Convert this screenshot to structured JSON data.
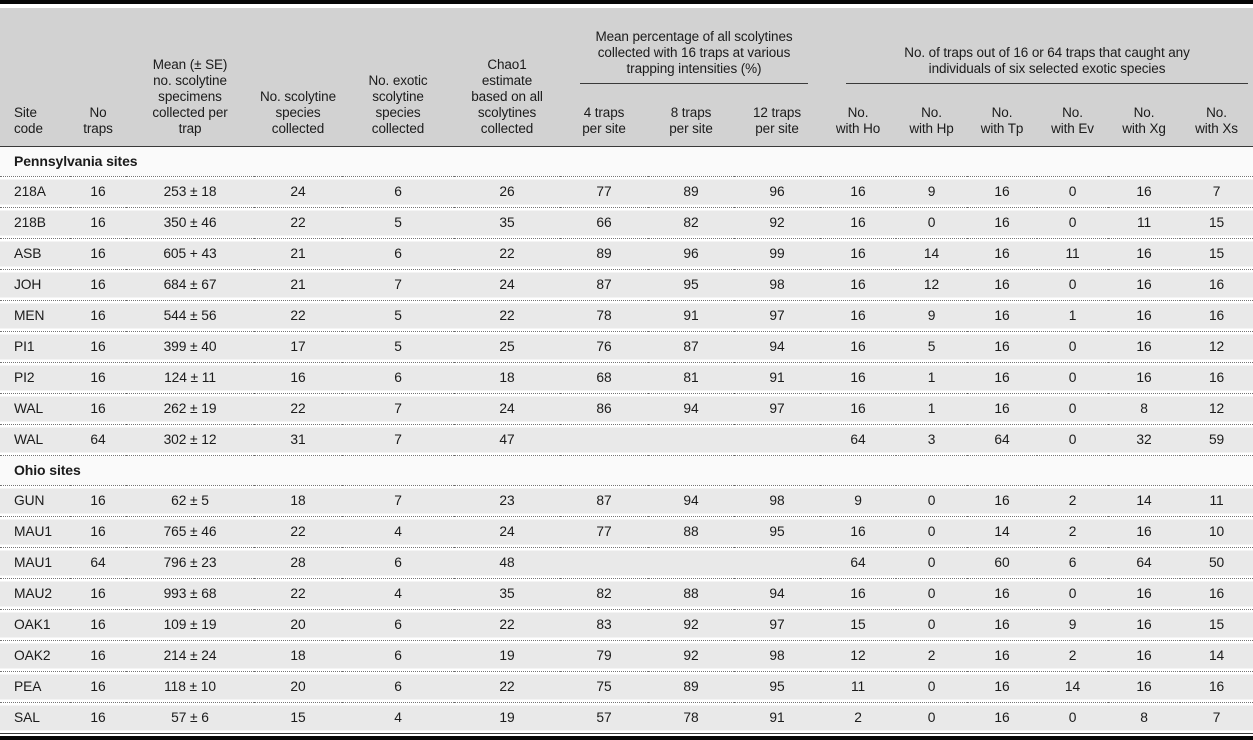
{
  "colors": {
    "header_bg": "#d2d2d2",
    "row_bg": "#e9e9e9",
    "section_bg": "#fafafa",
    "rule": "#3a3a3a",
    "frame": "#050505"
  },
  "table": {
    "columns": [
      {
        "id": "site",
        "label": "Site\ncode"
      },
      {
        "id": "traps",
        "label": "No\ntraps"
      },
      {
        "id": "mean",
        "label": "Mean (± SE)\nno. scolytine\nspecimens\ncollected per\ntrap"
      },
      {
        "id": "species",
        "label": "No. scolytine\nspecies\ncollected"
      },
      {
        "id": "exotic",
        "label": "No. exotic\nscolytine\nspecies\ncollected"
      },
      {
        "id": "chao1",
        "label": "Chao1\nestimate\nbased on all\nscolytines\ncollected"
      },
      {
        "id": "t4",
        "label": "4 traps\nper site"
      },
      {
        "id": "t8",
        "label": "8 traps\nper site"
      },
      {
        "id": "t12",
        "label": "12 traps\nper site"
      },
      {
        "id": "ho",
        "label": "No.\nwith Ho"
      },
      {
        "id": "hp",
        "label": "No.\nwith Hp"
      },
      {
        "id": "tp",
        "label": "No.\nwith Tp"
      },
      {
        "id": "ev",
        "label": "No.\nwith Ev"
      },
      {
        "id": "xg",
        "label": "No.\nwith Xg"
      },
      {
        "id": "xs",
        "label": "No.\nwith Xs"
      }
    ],
    "groups": [
      {
        "label": "Mean percentage of all scolytines\ncollected with 16 traps at various\ntrapping intensities (%)",
        "colspan": 3
      },
      {
        "label": "No. of traps out of 16 or 64 traps that caught any\nindividuals of six selected exotic species",
        "colspan": 6
      }
    ],
    "sections": [
      {
        "label": "Pennsylvania sites",
        "rows": [
          [
            "218A",
            "16",
            "253 ± 18",
            "24",
            "6",
            "26",
            "77",
            "89",
            "96",
            "16",
            "9",
            "16",
            "0",
            "16",
            "7"
          ],
          [
            "218B",
            "16",
            "350 ± 46",
            "22",
            "5",
            "35",
            "66",
            "82",
            "92",
            "16",
            "0",
            "16",
            "0",
            "11",
            "15"
          ],
          [
            "ASB",
            "16",
            "605 + 43",
            "21",
            "6",
            "22",
            "89",
            "96",
            "99",
            "16",
            "14",
            "16",
            "11",
            "16",
            "15"
          ],
          [
            "JOH",
            "16",
            "684 ± 67",
            "21",
            "7",
            "24",
            "87",
            "95",
            "98",
            "16",
            "12",
            "16",
            "0",
            "16",
            "16"
          ],
          [
            "MEN",
            "16",
            "544 ± 56",
            "22",
            "5",
            "22",
            "78",
            "91",
            "97",
            "16",
            "9",
            "16",
            "1",
            "16",
            "16"
          ],
          [
            "PI1",
            "16",
            "399 ± 40",
            "17",
            "5",
            "25",
            "76",
            "87",
            "94",
            "16",
            "5",
            "16",
            "0",
            "16",
            "12"
          ],
          [
            "PI2",
            "16",
            "124 ± 11",
            "16",
            "6",
            "18",
            "68",
            "81",
            "91",
            "16",
            "1",
            "16",
            "0",
            "16",
            "16"
          ],
          [
            "WAL",
            "16",
            "262 ± 19",
            "22",
            "7",
            "24",
            "86",
            "94",
            "97",
            "16",
            "1",
            "16",
            "0",
            "8",
            "12"
          ],
          [
            "WAL",
            "64",
            "302 ± 12",
            "31",
            "7",
            "47",
            "",
            "",
            "",
            "64",
            "3",
            "64",
            "0",
            "32",
            "59"
          ]
        ]
      },
      {
        "label": "Ohio sites",
        "rows": [
          [
            "GUN",
            "16",
            "62 ± 5",
            "18",
            "7",
            "23",
            "87",
            "94",
            "98",
            "9",
            "0",
            "16",
            "2",
            "14",
            "11"
          ],
          [
            "MAU1",
            "16",
            "765 ± 46",
            "22",
            "4",
            "24",
            "77",
            "88",
            "95",
            "16",
            "0",
            "14",
            "2",
            "16",
            "10"
          ],
          [
            "MAU1",
            "64",
            "796 ± 23",
            "28",
            "6",
            "48",
            "",
            "",
            "",
            "64",
            "0",
            "60",
            "6",
            "64",
            "50"
          ],
          [
            "MAU2",
            "16",
            "993 ± 68",
            "22",
            "4",
            "35",
            "82",
            "88",
            "94",
            "16",
            "0",
            "16",
            "0",
            "16",
            "16"
          ],
          [
            "OAK1",
            "16",
            "109 ± 19",
            "20",
            "6",
            "22",
            "83",
            "92",
            "97",
            "15",
            "0",
            "16",
            "9",
            "16",
            "15"
          ],
          [
            "OAK2",
            "16",
            "214 ± 24",
            "18",
            "6",
            "19",
            "79",
            "92",
            "98",
            "12",
            "2",
            "16",
            "2",
            "16",
            "14"
          ],
          [
            "PEA",
            "16",
            "118 ± 10",
            "20",
            "6",
            "22",
            "75",
            "89",
            "95",
            "11",
            "0",
            "16",
            "14",
            "16",
            "16"
          ],
          [
            "SAL",
            "16",
            "57 ± 6",
            "15",
            "4",
            "19",
            "57",
            "78",
            "91",
            "2",
            "0",
            "16",
            "0",
            "8",
            "7"
          ]
        ]
      }
    ]
  }
}
